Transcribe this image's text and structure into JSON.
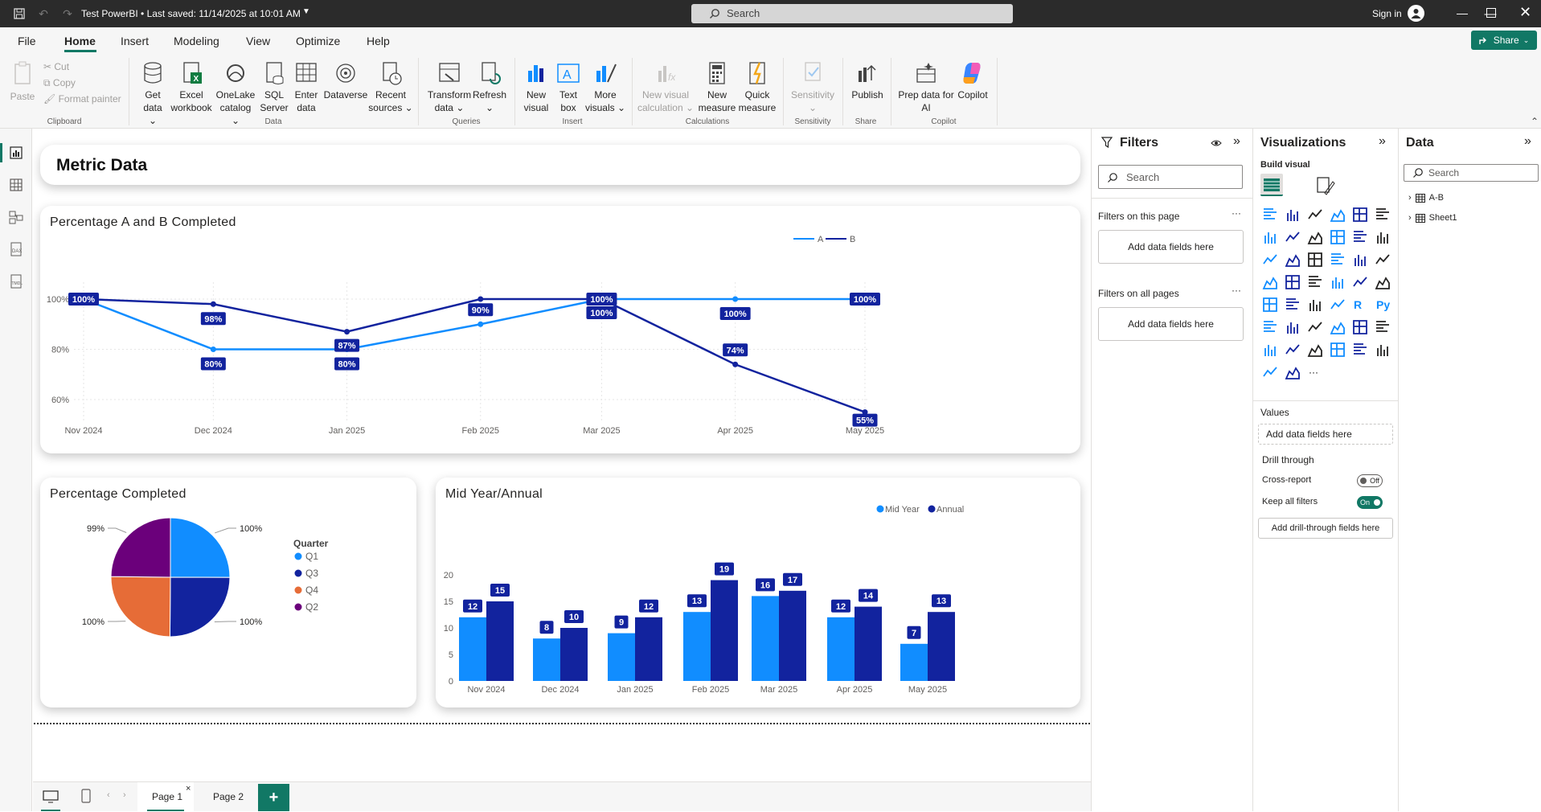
{
  "titlebar": {
    "title": "Test PowerBI • Last saved: 11/14/2025 at 10:01 AM",
    "search_placeholder": "Search",
    "sign_in": "Sign in"
  },
  "menu": {
    "items": [
      "File",
      "Home",
      "Insert",
      "Modeling",
      "View",
      "Optimize",
      "Help"
    ],
    "active": "Home",
    "share_label": "Share"
  },
  "ribbon": {
    "clipboard": {
      "paste": "Paste",
      "cut": "Cut",
      "copy": "Copy",
      "format_painter": "Format painter",
      "group": "Clipboard"
    },
    "data": {
      "get_data": [
        "Get",
        "data ⌄"
      ],
      "excel": [
        "Excel",
        "workbook"
      ],
      "onelake": [
        "OneLake",
        "catalog ⌄"
      ],
      "sql": [
        "SQL",
        "Server"
      ],
      "enter": [
        "Enter",
        "data"
      ],
      "dataverse": [
        "Dataverse",
        ""
      ],
      "recent": [
        "Recent",
        "sources ⌄"
      ],
      "group": "Data"
    },
    "queries": {
      "transform": [
        "Transform",
        "data ⌄"
      ],
      "refresh": [
        "Refresh",
        "⌄"
      ],
      "group": "Queries"
    },
    "insert": {
      "new_visual": [
        "New",
        "visual"
      ],
      "text_box": [
        "Text",
        "box"
      ],
      "more_visuals": [
        "More",
        "visuals ⌄"
      ],
      "group": "Insert"
    },
    "calculations": {
      "new_visual_calc": [
        "New visual",
        "calculation ⌄"
      ],
      "new_measure": [
        "New",
        "measure"
      ],
      "quick_measure": [
        "Quick",
        "measure"
      ],
      "group": "Calculations"
    },
    "sensitivity": {
      "label": [
        "Sensitivity",
        "⌄"
      ],
      "group": "Sensitivity"
    },
    "share": {
      "publish": [
        "Publish",
        ""
      ],
      "group": "Share"
    },
    "copilot": {
      "prep": [
        "Prep data for",
        "AI"
      ],
      "copilot": [
        "Copilot",
        ""
      ],
      "group": "Copilot"
    }
  },
  "report": {
    "metric_title": "Metric Data",
    "line_title": "Percentage A and B Completed",
    "pie_title": "Percentage Completed",
    "bar_title": "Mid Year/Annual"
  },
  "line_chart": {
    "type": "line",
    "categories": [
      "Nov 2024",
      "Dec 2024",
      "Jan 2025",
      "Feb 2025",
      "Mar 2025",
      "Apr 2025",
      "May 2025"
    ],
    "series": [
      {
        "name": "A",
        "values": [
          100,
          80,
          80,
          90,
          100,
          100,
          100
        ],
        "labels": [
          "100%",
          "80%",
          "80%",
          "90%",
          "100%",
          "100%",
          "100%"
        ],
        "color": "#118DFF"
      },
      {
        "name": "B",
        "values": [
          100,
          98,
          87,
          100,
          100,
          74,
          55
        ],
        "labels": [
          "100%",
          "98%",
          "87%",
          "",
          "100%",
          "74%",
          "55%"
        ],
        "color": "#12239E"
      }
    ],
    "y_ticks": [
      "100%",
      "80%",
      "60%"
    ],
    "legend": "top-right"
  },
  "pie_chart": {
    "type": "pie",
    "legend_title": "Quarter",
    "slices": [
      {
        "name": "Q1",
        "value": 100,
        "label": "100%",
        "color": "#118DFF"
      },
      {
        "name": "Q3",
        "value": 100,
        "label": "100%",
        "color": "#12239E"
      },
      {
        "name": "Q4",
        "value": 100,
        "label": "100%",
        "color": "#E66C37"
      },
      {
        "name": "Q2",
        "value": 99,
        "label": "99%",
        "color": "#6B007B"
      }
    ]
  },
  "chart_data": {
    "type": "bar",
    "categories": [
      "Nov 2024",
      "Dec 2024",
      "Jan 2025",
      "Feb 2025",
      "Mar 2025",
      "Apr 2025",
      "May 2025"
    ],
    "series": [
      {
        "name": "Mid Year",
        "values": [
          12,
          8,
          9,
          13,
          16,
          12,
          7
        ],
        "color": "#118DFF"
      },
      {
        "name": "Annual",
        "values": [
          15,
          10,
          12,
          19,
          17,
          14,
          13
        ],
        "color": "#12239E"
      }
    ],
    "ylim": [
      0,
      20
    ],
    "y_ticks": [
      "0",
      "5",
      "10",
      "15",
      "20"
    ],
    "legend": "top-right"
  },
  "pages": {
    "tabs": [
      "Page 1",
      "Page 2"
    ],
    "active": "Page 1",
    "add": "+"
  },
  "filters": {
    "title": "Filters",
    "search": "Search",
    "this_page": "Filters on this page",
    "all_pages": "Filters on all pages",
    "add_fields": "Add data fields here",
    "more": "···"
  },
  "viz": {
    "title": "Visualizations",
    "build": "Build visual",
    "values": "Values",
    "add_fields": "Add data fields here",
    "drill": "Drill through",
    "cross_report": "Cross-report",
    "cross_report_state": "Off",
    "keep_filters": "Keep all filters",
    "keep_filters_state": "On",
    "add_drill": "Add drill-through fields here",
    "more": "···"
  },
  "data_pane": {
    "title": "Data",
    "search": "Search",
    "tables": [
      "A-B",
      "Sheet1"
    ]
  }
}
